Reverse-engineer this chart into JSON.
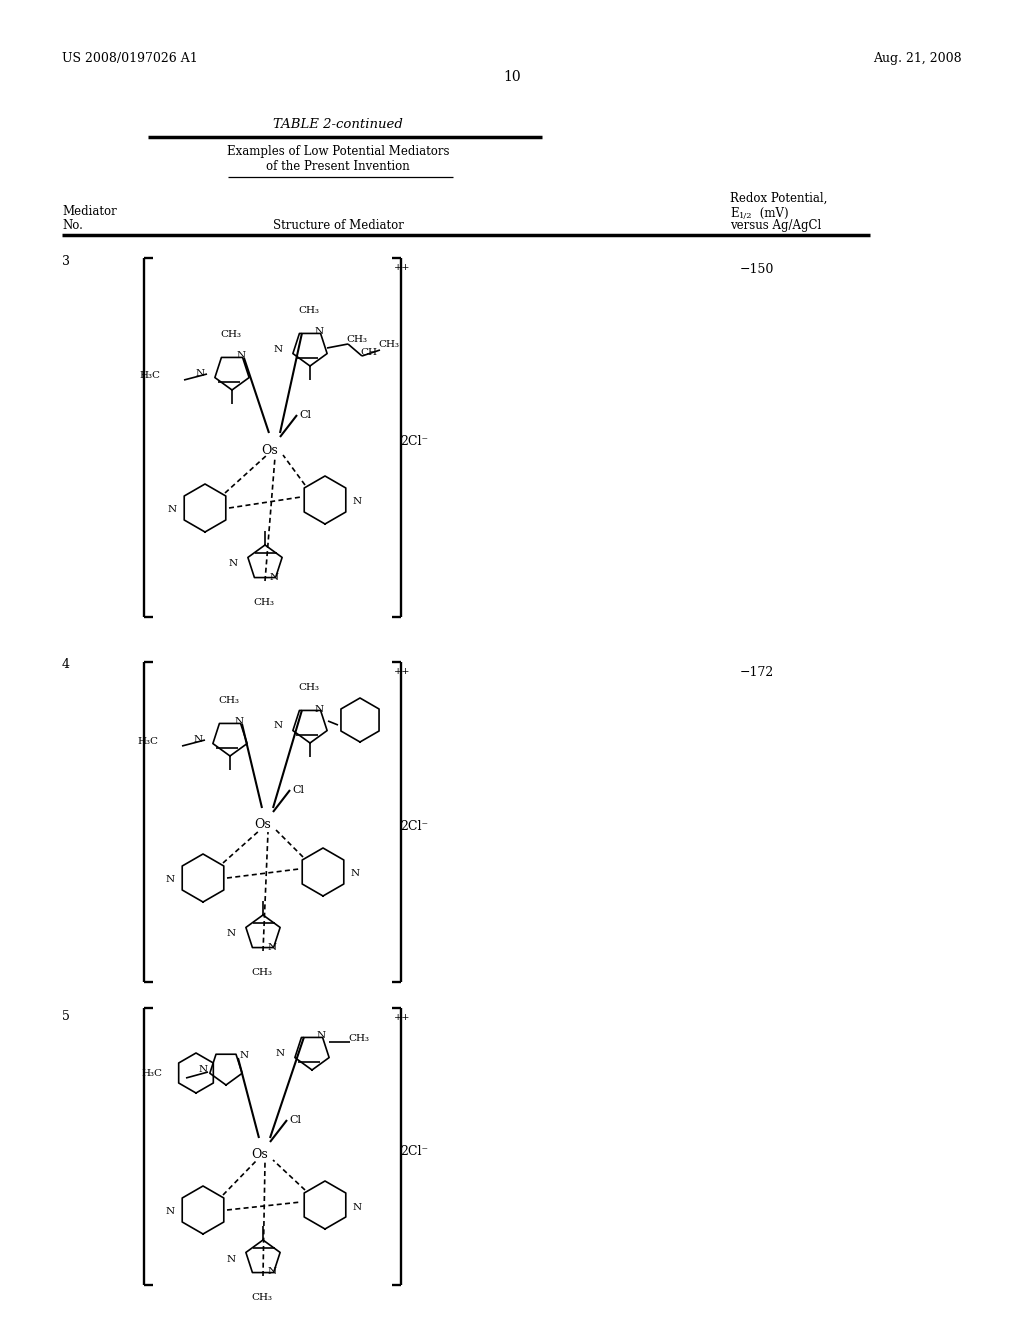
{
  "patent_left": "US 2008/0197026 A1",
  "patent_right": "Aug. 21, 2008",
  "page_number": "10",
  "table_title": "TABLE 2-continued",
  "examples_line1": "Examples of Low Potential Mediators",
  "examples_line2": "of the Present Invention",
  "col1a": "Mediator",
  "col1b": "No.",
  "col2": "Structure of Mediator",
  "col3a": "Redox Potential,",
  "col3b": "E",
  "col3b_sub": "1/2",
  "col3b_rest": " (mV)",
  "col3c": "versus Ag/AgCl",
  "row3_n": "3",
  "row3_v": "−150",
  "row4_n": "4",
  "row4_v": "−172",
  "row5_n": "5",
  "row5_v": "",
  "charge_sup": "++",
  "counter": "2Cl⁻",
  "bg": "#ffffff",
  "fg": "#000000"
}
